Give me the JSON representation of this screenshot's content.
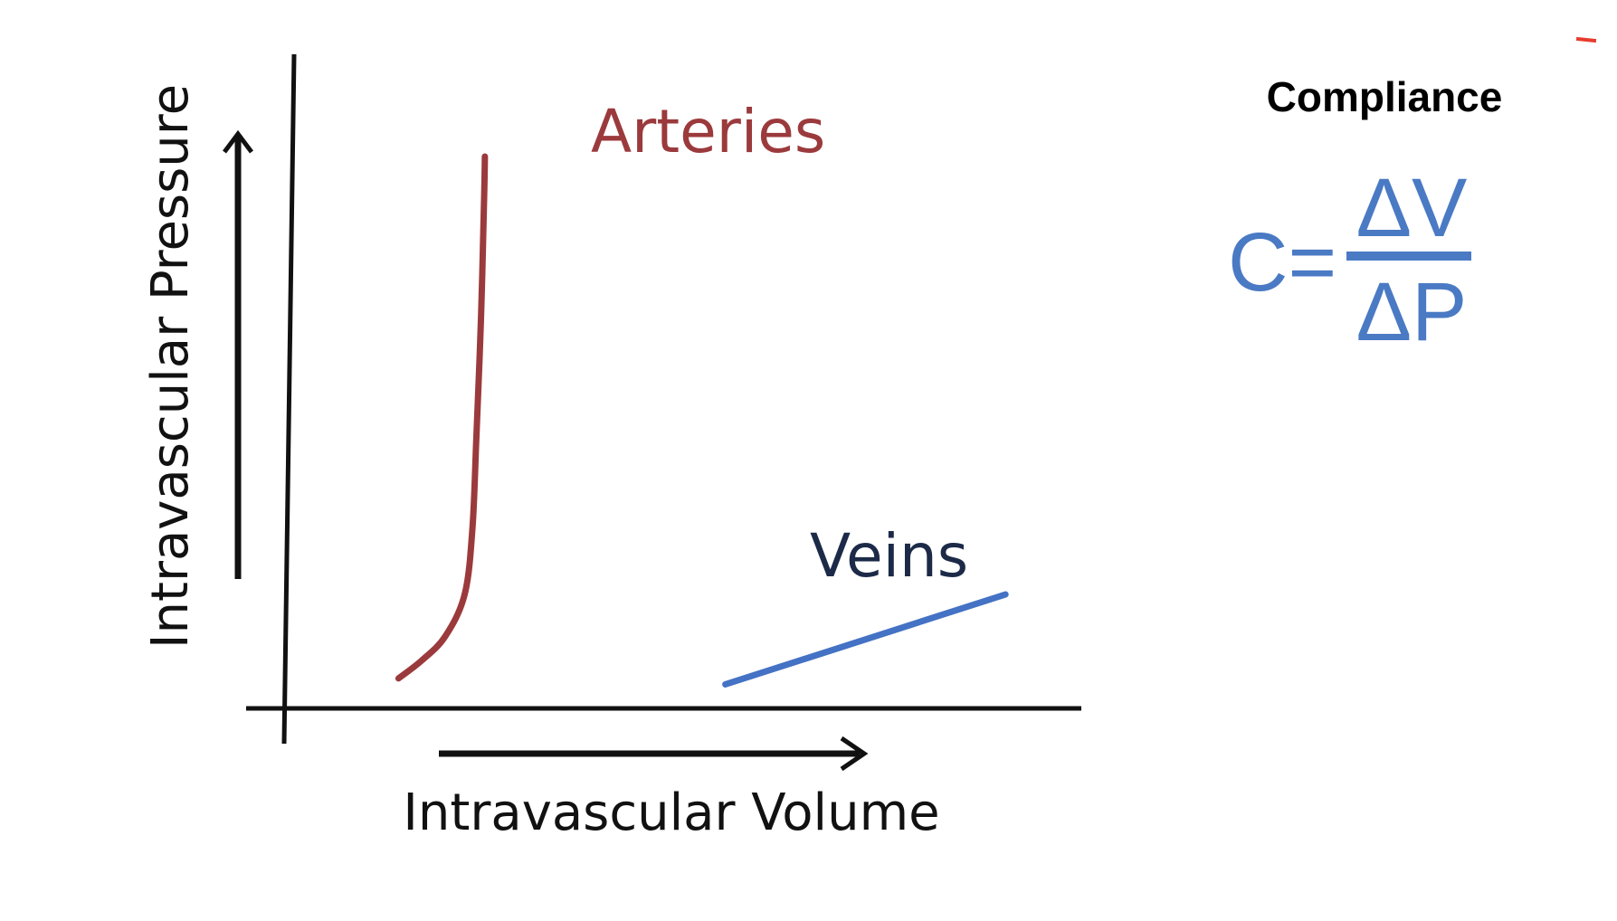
{
  "chart_data": {
    "type": "line",
    "title": "",
    "xlabel": "Intravascular Volume",
    "ylabel": "Intravascular Pressure",
    "grid": false,
    "legend": "none",
    "xlim": [
      0,
      100
    ],
    "ylim": [
      0,
      100
    ],
    "ticks": "none",
    "series": [
      {
        "name": "Arteries",
        "color": "#9b3a3c",
        "points": [
          [
            14,
            5
          ],
          [
            17,
            8
          ],
          [
            20,
            12
          ],
          [
            22.5,
            19
          ],
          [
            23.5,
            30
          ],
          [
            24,
            45
          ],
          [
            24.6,
            65
          ],
          [
            25,
            85
          ],
          [
            25.1,
            92
          ]
        ]
      },
      {
        "name": "Veins",
        "color": "#4472c4",
        "points": [
          [
            56,
            4
          ],
          [
            92,
            19
          ]
        ]
      }
    ]
  },
  "formula": {
    "title": "Compliance",
    "lhs": "C=",
    "numerator": "ΔV",
    "denominator": "ΔP",
    "color": "#4a7ac4"
  },
  "colors": {
    "axis": "#111111",
    "accent_mark": "#e63c2e"
  }
}
